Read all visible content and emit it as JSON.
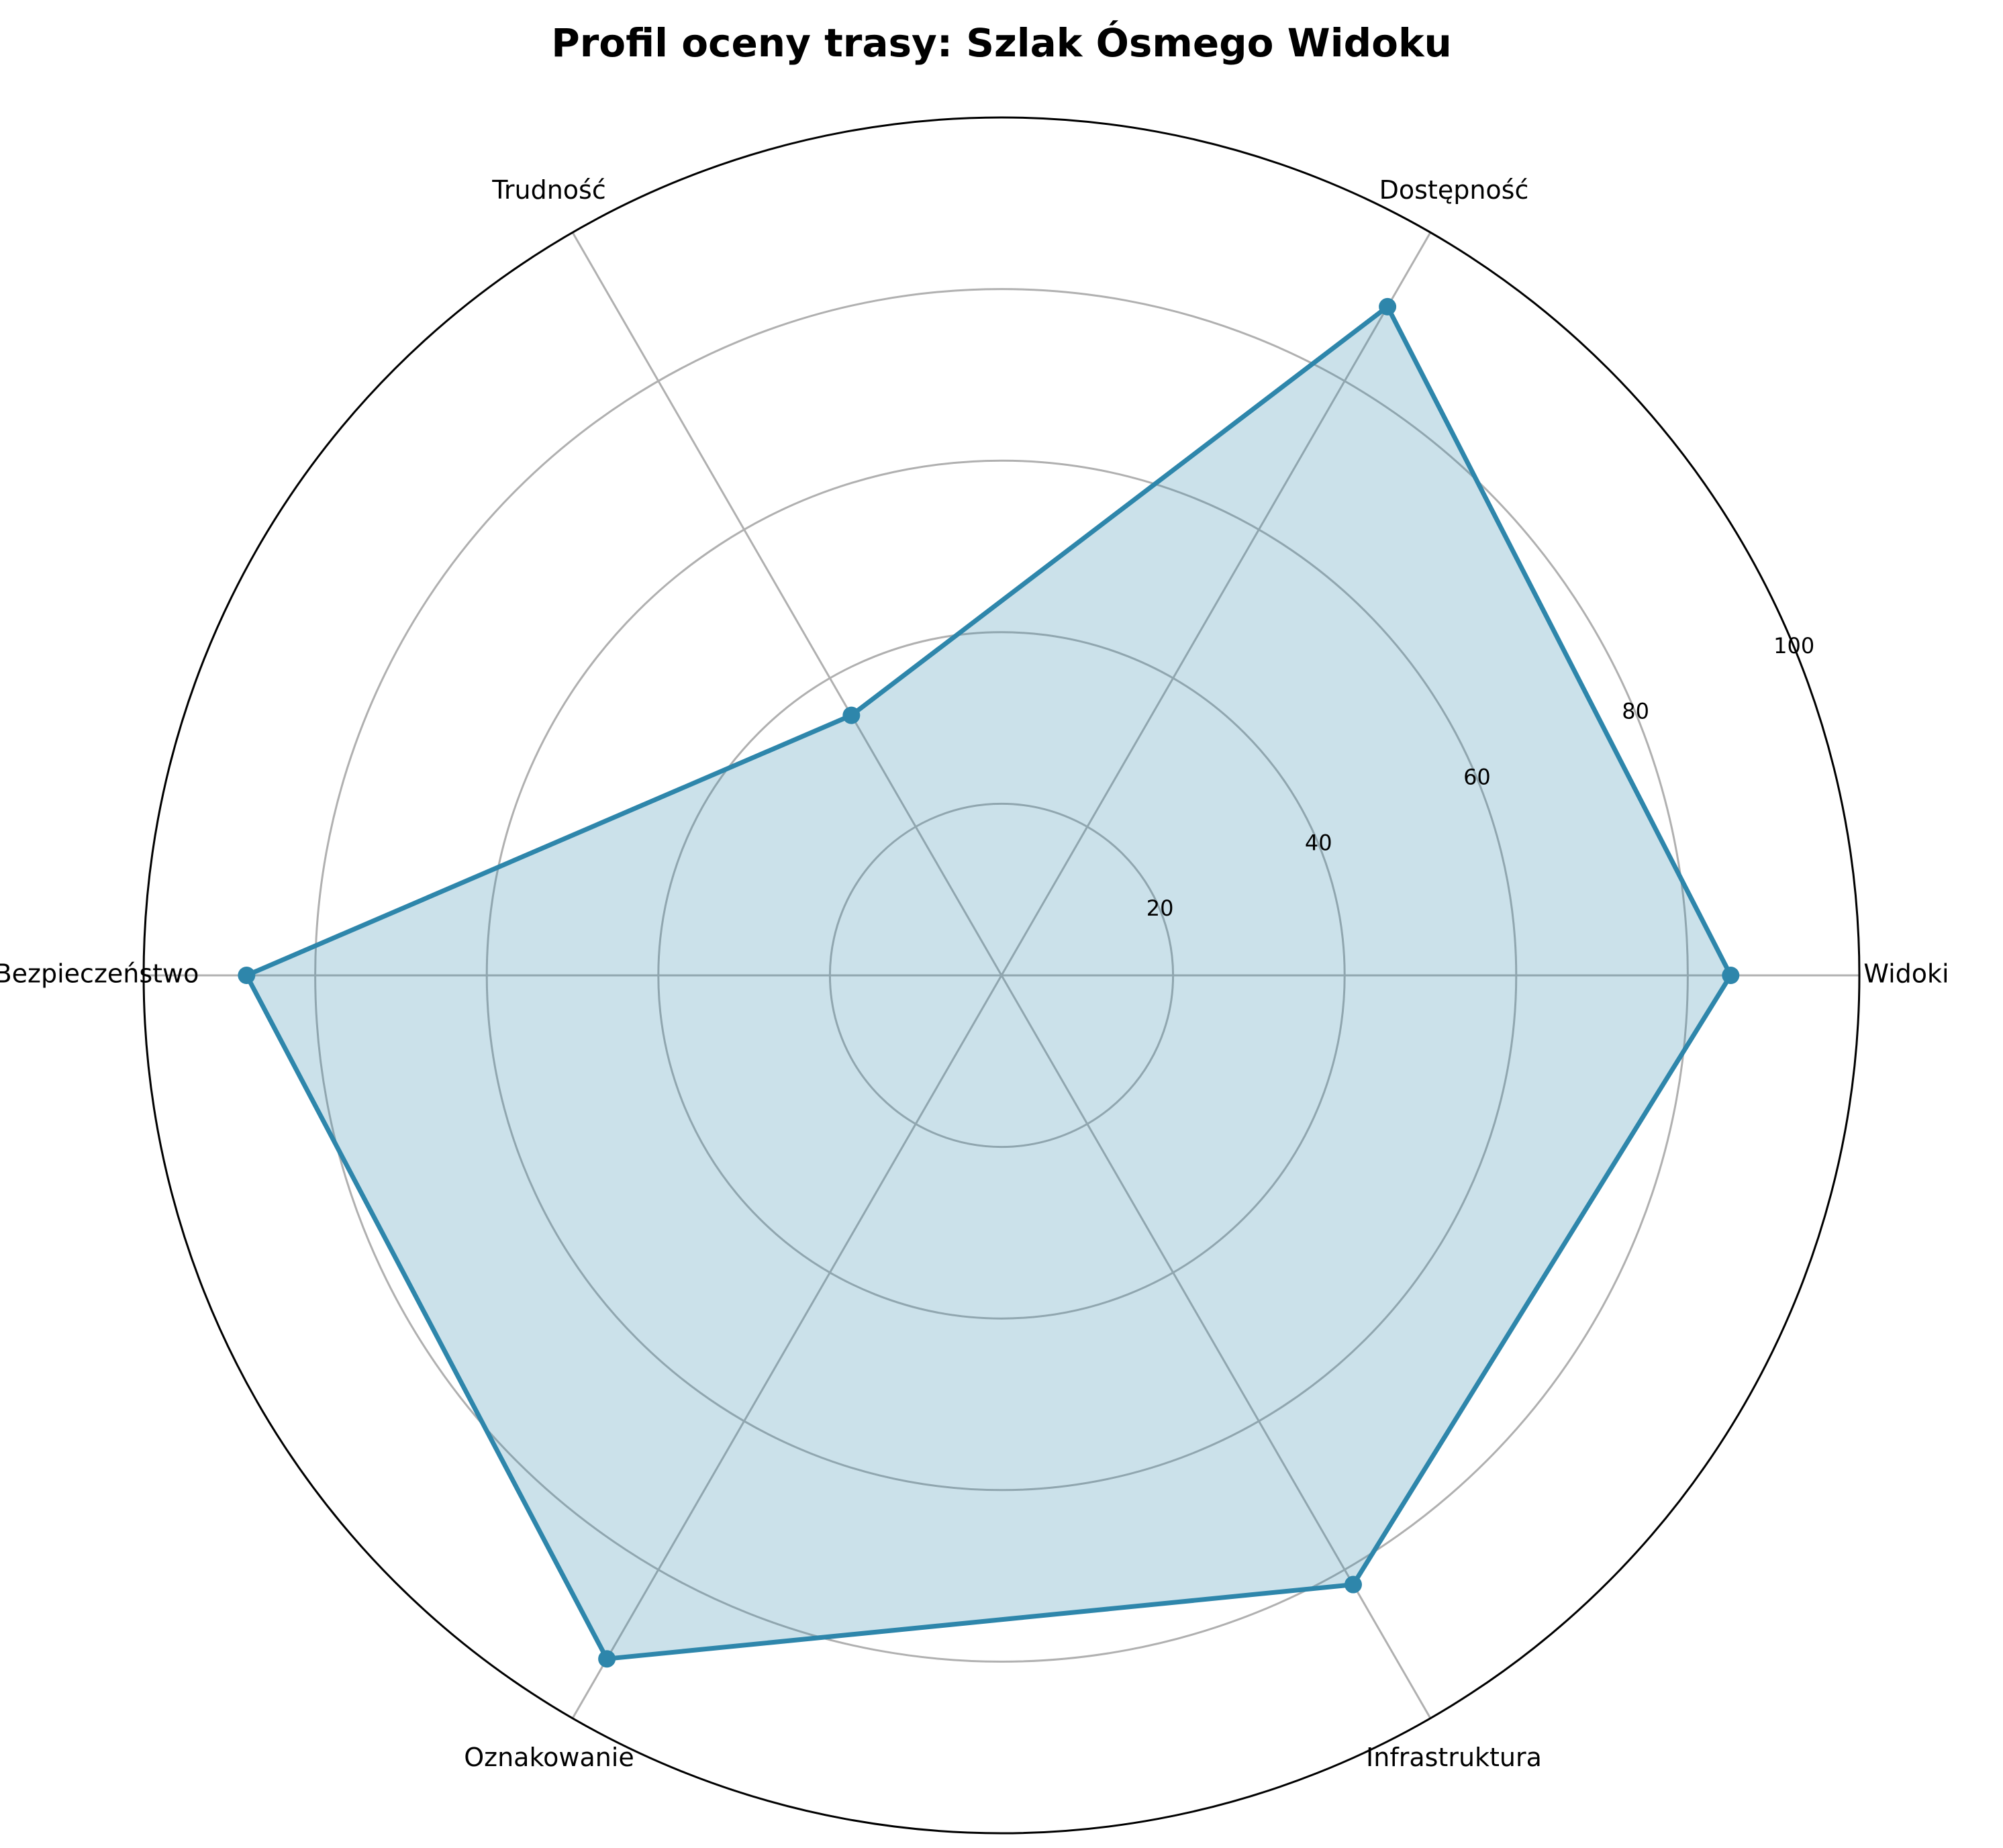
{
  "chart_data": {
    "type": "radar",
    "title": "Profil oceny trasy: Szlak Ósmego Widoku",
    "categories": [
      "Widoki",
      "Dostępność",
      "Trudność",
      "Bezpieczeństwo",
      "Oznakowanie",
      "Infrastruktura"
    ],
    "series": [
      {
        "values": [
          85,
          90,
          35,
          88,
          92,
          82
        ]
      }
    ],
    "rlim": [
      0,
      100
    ],
    "rticks": [
      20,
      40,
      60,
      80,
      100
    ],
    "grid": true,
    "colors": {
      "line": "#2e86ab",
      "fill": "#2e86ab",
      "grid": "#b0b0b0",
      "frame": "#000000"
    }
  }
}
